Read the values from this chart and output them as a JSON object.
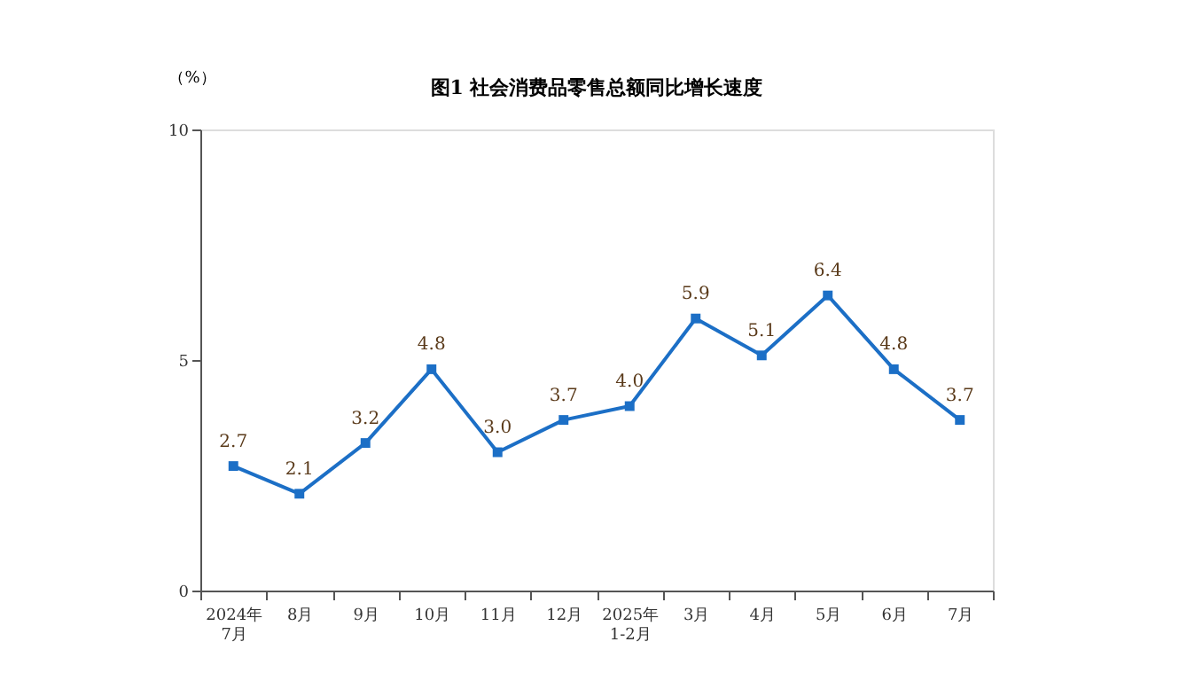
{
  "chart_data": {
    "type": "line",
    "title": "图1  社会消费品零售总额同比增长速度",
    "ylabel": "（%）",
    "categories": [
      "2024年\n7月",
      "8月",
      "9月",
      "10月",
      "11月",
      "12月",
      "2025年\n1-2月",
      "3月",
      "4月",
      "5月",
      "6月",
      "7月"
    ],
    "series": [
      {
        "color": "#1c6fc6",
        "values": [
          2.7,
          2.1,
          3.2,
          4.8,
          3.0,
          3.7,
          4.0,
          5.9,
          5.1,
          6.4,
          4.8,
          3.7
        ],
        "value_labels": [
          "2.7",
          "2.1",
          "3.2",
          "4.8",
          "3.0",
          "3.7",
          "4.0",
          "5.9",
          "5.1",
          "6.4",
          "4.8",
          "3.7"
        ]
      }
    ],
    "ylim": [
      0,
      10
    ],
    "yticks": [
      0,
      5,
      10
    ],
    "grid": false,
    "marker": "square",
    "line_style": "solid"
  }
}
